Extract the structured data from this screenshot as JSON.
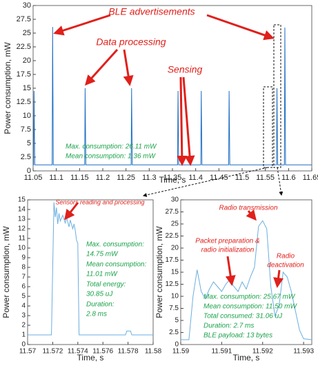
{
  "chart_data": [
    {
      "type": "line",
      "x_label": "Time, s",
      "y_label": "Power consumption, mW",
      "xlim": [
        11.05,
        11.65
      ],
      "xticks": [
        11.05,
        11.1,
        11.15,
        11.2,
        11.25,
        11.3,
        11.35,
        11.4,
        11.45,
        11.5,
        11.55,
        11.6,
        11.65
      ],
      "ylim": [
        0,
        30
      ],
      "yticks": [
        0,
        2.5,
        5,
        7.5,
        10,
        12.5,
        15,
        17.5,
        20,
        22.5,
        25,
        27.5,
        30
      ],
      "color": "#1f6fc4",
      "x": [
        11.05,
        11.051,
        11.052,
        11.0535,
        11.091,
        11.092,
        11.0935,
        11.161,
        11.162,
        11.1635,
        11.261,
        11.262,
        11.2635,
        11.361,
        11.362,
        11.3635,
        11.411,
        11.412,
        11.4135,
        11.471,
        11.472,
        11.4735,
        11.574,
        11.575,
        11.5765,
        11.591,
        11.592,
        11.5935,
        11.65
      ],
      "y": [
        1.1,
        1.1,
        14.5,
        1.1,
        1.1,
        26.11,
        1.1,
        1.1,
        15,
        1.1,
        1.1,
        15,
        1.1,
        1.1,
        14.5,
        1.1,
        1.1,
        14.5,
        1.1,
        1.1,
        14.5,
        1.1,
        1.1,
        15,
        1.1,
        1.1,
        26,
        1.1,
        1.1
      ],
      "annotations": [
        {
          "text": "BLE advertisements",
          "color": "#e0201b"
        },
        {
          "text": "Data processing",
          "color": "#e0201b"
        },
        {
          "text": "Sensing",
          "color": "#e0201b"
        },
        {
          "text": "Max. consumption: 26.11 mW",
          "color": "#1aa34a"
        },
        {
          "text": "Mean consumption: 1.36 mW",
          "color": "#1aa34a"
        }
      ]
    },
    {
      "type": "line",
      "x_label": "Time, s",
      "y_label": "Power consumption, mW",
      "xlim": [
        11.57,
        11.58
      ],
      "xticks": [
        11.57,
        11.572,
        11.574,
        11.576,
        11.578,
        11.58
      ],
      "ylim": [
        0,
        15
      ],
      "yticks": [
        0,
        1,
        2,
        3,
        4,
        5,
        6,
        7,
        8,
        9,
        10,
        11,
        12,
        13,
        14,
        15
      ],
      "color": "#6aaee0",
      "x": [
        11.57,
        11.5719,
        11.572,
        11.5721,
        11.5722,
        11.5723,
        11.5724,
        11.5725,
        11.5726,
        11.5728,
        11.573,
        11.5731,
        11.5733,
        11.5734,
        11.5736,
        11.5737,
        11.5738,
        11.5739,
        11.574,
        11.5741,
        11.5778,
        11.5779,
        11.5782,
        11.5783,
        11.58
      ],
      "y": [
        1,
        1,
        8,
        14.75,
        13.2,
        14.2,
        12.5,
        13.6,
        12.8,
        13.4,
        12.6,
        13.2,
        12.2,
        12.9,
        12,
        12.5,
        11.8,
        10.8,
        10.5,
        1,
        1,
        1.4,
        1.4,
        1,
        1
      ],
      "annotations": [
        {
          "text": "Sensors reading and processing",
          "color": "#e0201b"
        },
        {
          "text": "Max. consumption:",
          "color": "#1aa34a"
        },
        {
          "text": "14.75 mW",
          "color": "#1aa34a"
        },
        {
          "text": "Mean consumption:",
          "color": "#1aa34a"
        },
        {
          "text": "11.01 mW",
          "color": "#1aa34a"
        },
        {
          "text": "Total energy:",
          "color": "#1aa34a"
        },
        {
          "text": "30.85 uJ",
          "color": "#1aa34a"
        },
        {
          "text": "Duration:",
          "color": "#1aa34a"
        },
        {
          "text": "2.8 ms",
          "color": "#1aa34a"
        }
      ]
    },
    {
      "type": "line",
      "x_label": "Time, s",
      "y_label": "Power consumption, mW",
      "xlim": [
        11.59,
        11.5932
      ],
      "xticks": [
        11.59,
        11.591,
        11.592,
        11.593
      ],
      "ylim": [
        0,
        30
      ],
      "yticks": [
        0,
        2.5,
        5,
        7.5,
        10,
        12.5,
        15,
        17.5,
        20,
        22.5,
        25,
        27.5,
        30
      ],
      "color": "#6aaee0",
      "x": [
        11.59,
        11.5902,
        11.5903,
        11.5904,
        11.5905,
        11.5906,
        11.5907,
        11.5908,
        11.5909,
        11.591,
        11.5911,
        11.5912,
        11.5913,
        11.5914,
        11.5915,
        11.5916,
        11.5917,
        11.5918,
        11.5919,
        11.592,
        11.5921,
        11.5922,
        11.5923,
        11.5924,
        11.5925,
        11.5926,
        11.5927,
        11.5928,
        11.5929,
        11.593,
        11.5932
      ],
      "y": [
        1,
        1,
        10,
        15.5,
        11,
        9.5,
        11.5,
        13,
        12,
        11,
        12.5,
        13.5,
        12,
        11,
        13,
        11.5,
        14,
        16,
        24.5,
        25.67,
        24,
        12,
        6,
        8,
        15,
        14,
        11,
        7,
        3,
        1.2,
        1
      ],
      "annotations": [
        {
          "text": "Radio transmission",
          "color": "#e0201b"
        },
        {
          "text": "Packet preparation &",
          "color": "#e0201b"
        },
        {
          "text": "radio initialization",
          "color": "#e0201b"
        },
        {
          "text": "Radio",
          "color": "#e0201b"
        },
        {
          "text": "deactivation",
          "color": "#e0201b"
        },
        {
          "text": "Max. consumption: 25.67 mW",
          "color": "#1aa34a"
        },
        {
          "text": "Mean consumption: 11.50 mW",
          "color": "#1aa34a"
        },
        {
          "text": "Total consumed: 31.06 uJ",
          "color": "#1aa34a"
        },
        {
          "text": "Duration: 2.7 ms",
          "color": "#1aa34a"
        },
        {
          "text": "BLE payload: 13 bytes",
          "color": "#1aa34a"
        }
      ]
    }
  ]
}
